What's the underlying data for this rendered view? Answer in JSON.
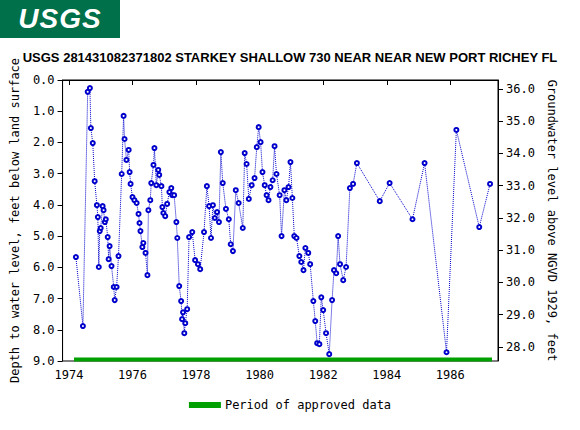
{
  "header": {
    "logo_text": "USGS"
  },
  "chart_data": {
    "type": "line",
    "title": "USGS 281431082371802 STARKEY SHALLOW 730 NEAR NEAR NEW PORT RICHEY FL",
    "ylabel": "Depth to water level, feet below land surface",
    "y2label": "Groundwater level above NGVD 1929, feet",
    "xlim": [
      1973.8,
      1987.5
    ],
    "xticks": [
      1974,
      1976,
      1978,
      1980,
      1982,
      1984,
      1986
    ],
    "ylim": [
      0,
      9
    ],
    "yticks": [
      {
        "value": 0,
        "label": "0.0"
      },
      {
        "value": 1,
        "label": "1.0"
      },
      {
        "value": 2,
        "label": "2.0"
      },
      {
        "value": 3,
        "label": "3.0"
      },
      {
        "value": 4,
        "label": "4.0"
      },
      {
        "value": 5,
        "label": "5.0"
      },
      {
        "value": 6,
        "label": "6.0"
      },
      {
        "value": 7,
        "label": "7.0"
      },
      {
        "value": 8,
        "label": "8.0"
      },
      {
        "value": 9,
        "label": "9.0"
      }
    ],
    "y2lim": [
      27.56,
      36.28
    ],
    "y2ticks": [
      {
        "value": 28,
        "label": "28.0"
      },
      {
        "value": 29,
        "label": "29.0"
      },
      {
        "value": 30,
        "label": "30.0"
      },
      {
        "value": 31,
        "label": "31.0"
      },
      {
        "value": 32,
        "label": "32.0"
      },
      {
        "value": 33,
        "label": "33.0"
      },
      {
        "value": 34,
        "label": "34.0"
      },
      {
        "value": 35,
        "label": "35.0"
      },
      {
        "value": 36,
        "label": "36.0"
      }
    ],
    "grid": false,
    "legend": "bottom",
    "series": [
      {
        "color": "#0000cc",
        "marker": "circle",
        "line_style": "dotted",
        "x": [
          1974.22,
          1974.44,
          1974.59,
          1974.66,
          1974.69,
          1974.75,
          1974.81,
          1974.88,
          1974.91,
          1974.94,
          1974.97,
          1975.0,
          1975.06,
          1975.09,
          1975.13,
          1975.16,
          1975.22,
          1975.25,
          1975.28,
          1975.34,
          1975.41,
          1975.44,
          1975.5,
          1975.56,
          1975.66,
          1975.72,
          1975.75,
          1975.81,
          1975.88,
          1975.91,
          1975.94,
          1976.0,
          1976.06,
          1976.13,
          1976.19,
          1976.22,
          1976.25,
          1976.31,
          1976.34,
          1976.41,
          1976.47,
          1976.5,
          1976.56,
          1976.59,
          1976.66,
          1976.69,
          1976.75,
          1976.81,
          1976.84,
          1976.91,
          1976.94,
          1976.97,
          1977.03,
          1977.09,
          1977.16,
          1977.22,
          1977.25,
          1977.31,
          1977.38,
          1977.41,
          1977.47,
          1977.53,
          1977.56,
          1977.59,
          1977.63,
          1977.66,
          1977.72,
          1977.78,
          1977.88,
          1977.97,
          1978.06,
          1978.13,
          1978.25,
          1978.34,
          1978.41,
          1978.47,
          1978.53,
          1978.59,
          1978.66,
          1978.72,
          1978.78,
          1978.84,
          1978.94,
          1979.03,
          1979.09,
          1979.16,
          1979.25,
          1979.34,
          1979.47,
          1979.53,
          1979.59,
          1979.66,
          1979.75,
          1979.84,
          1979.91,
          1979.97,
          1980.03,
          1980.09,
          1980.16,
          1980.22,
          1980.28,
          1980.34,
          1980.41,
          1980.47,
          1980.53,
          1980.63,
          1980.69,
          1980.78,
          1980.84,
          1980.91,
          1980.97,
          1981.03,
          1981.09,
          1981.16,
          1981.25,
          1981.31,
          1981.38,
          1981.44,
          1981.53,
          1981.59,
          1981.69,
          1981.75,
          1981.81,
          1981.88,
          1981.94,
          1982.0,
          1982.09,
          1982.19,
          1982.28,
          1982.34,
          1982.41,
          1982.47,
          1982.53,
          1982.63,
          1982.72,
          1982.84,
          1982.94,
          1983.06,
          1983.78,
          1984.09,
          1984.81,
          1985.19,
          1985.88,
          1986.19,
          1986.91,
          1987.25
        ],
        "values": [
          5.67,
          7.88,
          0.38,
          0.26,
          1.54,
          2.02,
          3.24,
          4.01,
          4.39,
          5.99,
          4.84,
          4.74,
          4.04,
          4.17,
          4.55,
          4.46,
          5.03,
          5.74,
          5.32,
          5.96,
          6.63,
          7.05,
          6.63,
          5.64,
          3.01,
          1.15,
          1.89,
          2.56,
          2.24,
          2.95,
          3.33,
          3.75,
          3.85,
          3.94,
          4.29,
          4.58,
          4.84,
          5.35,
          5.22,
          5.54,
          6.25,
          4.17,
          3.85,
          3.3,
          2.72,
          2.18,
          3.37,
          2.88,
          3.04,
          3.4,
          4.07,
          4.26,
          4.36,
          3.97,
          3.59,
          3.46,
          3.69,
          3.69,
          4.55,
          5.06,
          6.6,
          7.08,
          7.66,
          7.44,
          8.11,
          7.79,
          7.34,
          5.03,
          4.87,
          5.77,
          5.9,
          6.06,
          4.87,
          3.4,
          4.04,
          5.06,
          4.01,
          4.42,
          4.23,
          4.55,
          2.31,
          3.3,
          4.13,
          4.46,
          5.26,
          5.48,
          3.53,
          3.94,
          4.74,
          2.34,
          2.69,
          3.81,
          3.37,
          3.14,
          2.15,
          1.51,
          1.99,
          2.95,
          3.37,
          3.69,
          3.85,
          3.43,
          3.21,
          2.12,
          3.01,
          3.69,
          5.0,
          3.53,
          3.85,
          3.43,
          2.63,
          3.78,
          5.0,
          5.06,
          5.64,
          5.83,
          6.09,
          5.38,
          5.54,
          5.9,
          7.08,
          7.72,
          8.43,
          8.46,
          6.96,
          7.37,
          8.11,
          8.78,
          7.05,
          6.09,
          6.19,
          5.0,
          5.9,
          6.41,
          5.99,
          3.46,
          3.33,
          2.66,
          3.88,
          3.3,
          4.46,
          2.66,
          8.72,
          1.6,
          4.71,
          3.33
        ]
      },
      {
        "name": "Period of approved data",
        "color": "#00a000",
        "line_style": "solid",
        "x": [
          1974.16,
          1987.31
        ],
        "values": [
          8.95,
          8.95
        ]
      }
    ]
  }
}
